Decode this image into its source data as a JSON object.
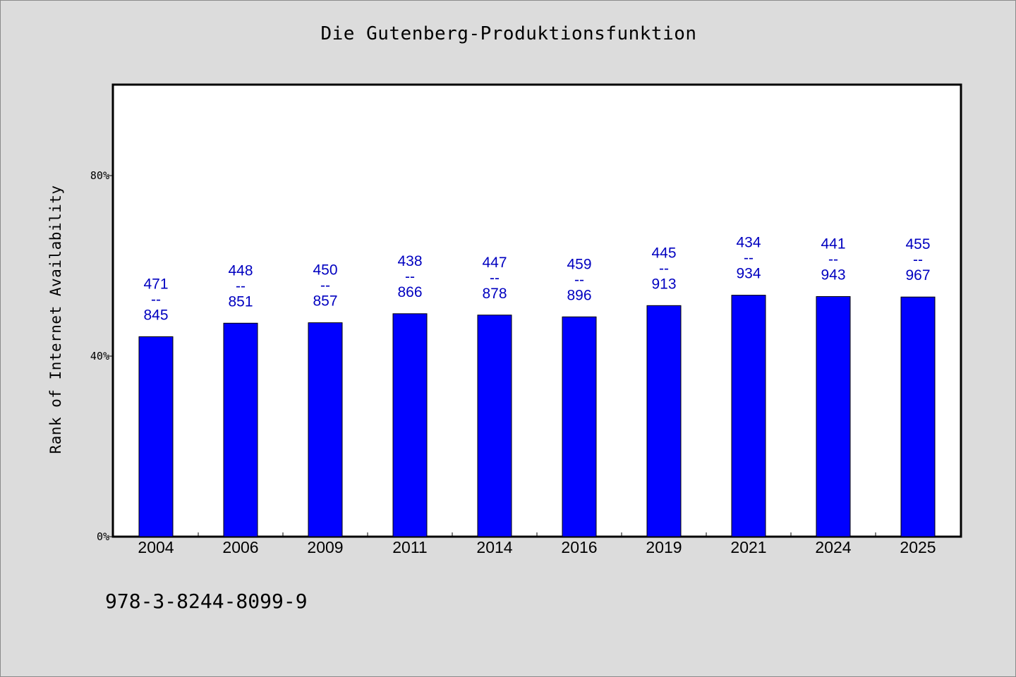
{
  "chart_data": {
    "type": "bar",
    "title": "Die Gutenberg-Produktionsfunktion",
    "ylabel": "Rank of Internet Availability",
    "xlabel": "",
    "ylim": [
      0,
      100
    ],
    "yticks": [
      0,
      40,
      80
    ],
    "ytick_labels": [
      "0%",
      "40%",
      "80%"
    ],
    "categories": [
      "2004",
      "2006",
      "2009",
      "2011",
      "2014",
      "2016",
      "2019",
      "2021",
      "2024",
      "2025"
    ],
    "values": [
      44.3,
      47.3,
      47.4,
      49.4,
      49.1,
      48.7,
      51.2,
      53.5,
      53.2,
      53.1
    ],
    "data_labels": [
      [
        "471",
        "--",
        "845"
      ],
      [
        "448",
        "--",
        "851"
      ],
      [
        "450",
        "--",
        "857"
      ],
      [
        "438",
        "--",
        "866"
      ],
      [
        "447",
        "--",
        "878"
      ],
      [
        "459",
        "--",
        "896"
      ],
      [
        "445",
        "--",
        "913"
      ],
      [
        "434",
        "--",
        "934"
      ],
      [
        "441",
        "--",
        "943"
      ],
      [
        "455",
        "--",
        "967"
      ]
    ],
    "bar_color": "#0000ff",
    "label_color": "#0000c0",
    "grid": false,
    "legend": "none"
  },
  "footer": {
    "code": "978-3-8244-8099-9"
  }
}
